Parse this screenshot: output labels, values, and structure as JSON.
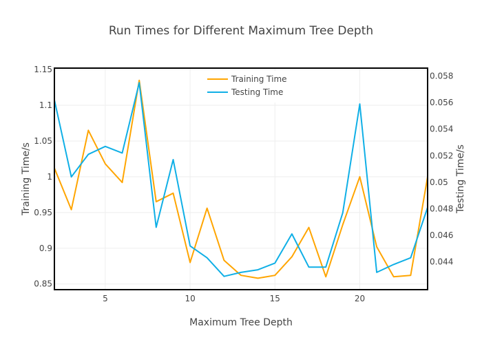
{
  "chart_data": {
    "type": "line",
    "title": "Run Times for Different Maximum Tree Depth",
    "xlabel": "Maximum Tree Depth",
    "ylabel": "Training Time/s",
    "y2label": "Testing Time/s",
    "xlim": [
      2,
      24
    ],
    "ylim": [
      0.842,
      1.152
    ],
    "y2lim": [
      0.0419,
      0.0586
    ],
    "xticks": [
      "5",
      "10",
      "15",
      "20"
    ],
    "yticks": [
      "0.85",
      "0.9",
      "0.95",
      "1",
      "1.05",
      "1.1",
      "1.15"
    ],
    "y2ticks": [
      "0.044",
      "0.046",
      "0.048",
      "0.05",
      "0.052",
      "0.054",
      "0.056",
      "0.058"
    ],
    "grid": true,
    "legend_position": "top-center",
    "x": [
      2,
      3,
      4,
      5,
      6,
      7,
      8,
      9,
      10,
      11,
      12,
      13,
      14,
      15,
      16,
      17,
      18,
      19,
      20,
      21,
      22,
      23,
      24
    ],
    "series": [
      {
        "name": "Training Time",
        "axis": "y",
        "color": "#FFA500",
        "values": [
          1.012,
          0.954,
          1.065,
          1.018,
          0.992,
          1.135,
          0.965,
          0.977,
          0.88,
          0.956,
          0.883,
          0.862,
          0.858,
          0.862,
          0.888,
          0.929,
          0.86,
          0.933,
          1.0,
          0.902,
          0.86,
          0.862,
          1.0
        ]
      },
      {
        "name": "Testing Time",
        "axis": "y2",
        "color": "#0FAFE6",
        "values": [
          0.0562,
          0.0504,
          0.0521,
          0.0527,
          0.0522,
          0.0575,
          0.0466,
          0.0517,
          0.0452,
          0.0443,
          0.0429,
          0.0432,
          0.0434,
          0.0439,
          0.0461,
          0.0436,
          0.0436,
          0.0477,
          0.0559,
          0.0432,
          0.0438,
          0.0443,
          0.0481
        ]
      }
    ]
  }
}
